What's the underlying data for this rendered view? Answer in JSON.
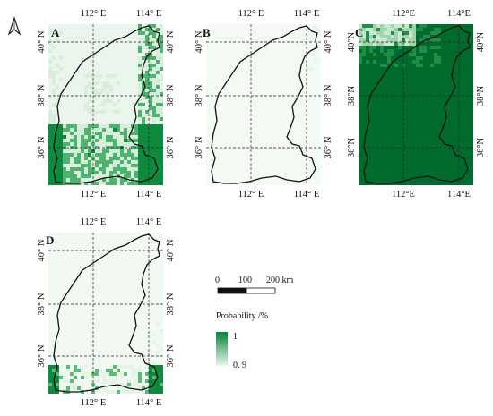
{
  "north_arrow": {
    "icon": "north-arrow-icon"
  },
  "panels": [
    {
      "id": "A",
      "label": "A",
      "lon_ticks": [
        "112° E",
        "114° E"
      ],
      "lat_ticks": [
        "40° N",
        "38° N",
        "36° N"
      ],
      "lat_ticks_right": [
        "40° N",
        "38° N",
        "36° N"
      ],
      "overlay_text": "",
      "colors": {
        "high": "#0d8a3e",
        "mid": "#4db36e",
        "low": "#d8eedc"
      }
    },
    {
      "id": "B",
      "label": "B",
      "lon_ticks": [
        "112° E",
        "114° E"
      ],
      "lat_ticks": [
        "40° N",
        "38° N",
        "36° N"
      ],
      "lat_ticks_right": [
        "40° N",
        "38° N",
        "36° N"
      ],
      "overlay_text": "",
      "colors": {
        "high": "#3aa65f",
        "mid": "#88cc98",
        "low": "#e8f5ea"
      }
    },
    {
      "id": "C",
      "label": "C",
      "lon_ticks": [
        "112°E",
        "114°E"
      ],
      "lat_ticks": [
        "40°N",
        "38°N",
        "36°N"
      ],
      "lat_ticks_right": [
        "40°N",
        "38°N",
        "36°N"
      ],
      "overlay_text": "",
      "colors": {
        "high": "#006b2d",
        "mid": "#1f8f48",
        "low": "#9fd4ad"
      }
    },
    {
      "id": "D",
      "label": "D",
      "lon_ticks": [
        "112° E",
        "114° E"
      ],
      "lat_ticks": [
        "40° N",
        "38° N",
        "36° N"
      ],
      "lat_ticks_right": [
        "40° N",
        "38° N",
        "36° N"
      ],
      "overlay_text": "",
      "colors": {
        "high": "#0d8a3e",
        "mid": "#5bba78",
        "low": "#e6f4e8"
      }
    }
  ],
  "scale_bar": {
    "labels": [
      "0",
      "100",
      "200 km"
    ]
  },
  "legend": {
    "title": "Probability /%",
    "max_label": "1",
    "min_label": "0. 9",
    "color_high": "#00843a",
    "color_low": "#eaf7ec"
  }
}
